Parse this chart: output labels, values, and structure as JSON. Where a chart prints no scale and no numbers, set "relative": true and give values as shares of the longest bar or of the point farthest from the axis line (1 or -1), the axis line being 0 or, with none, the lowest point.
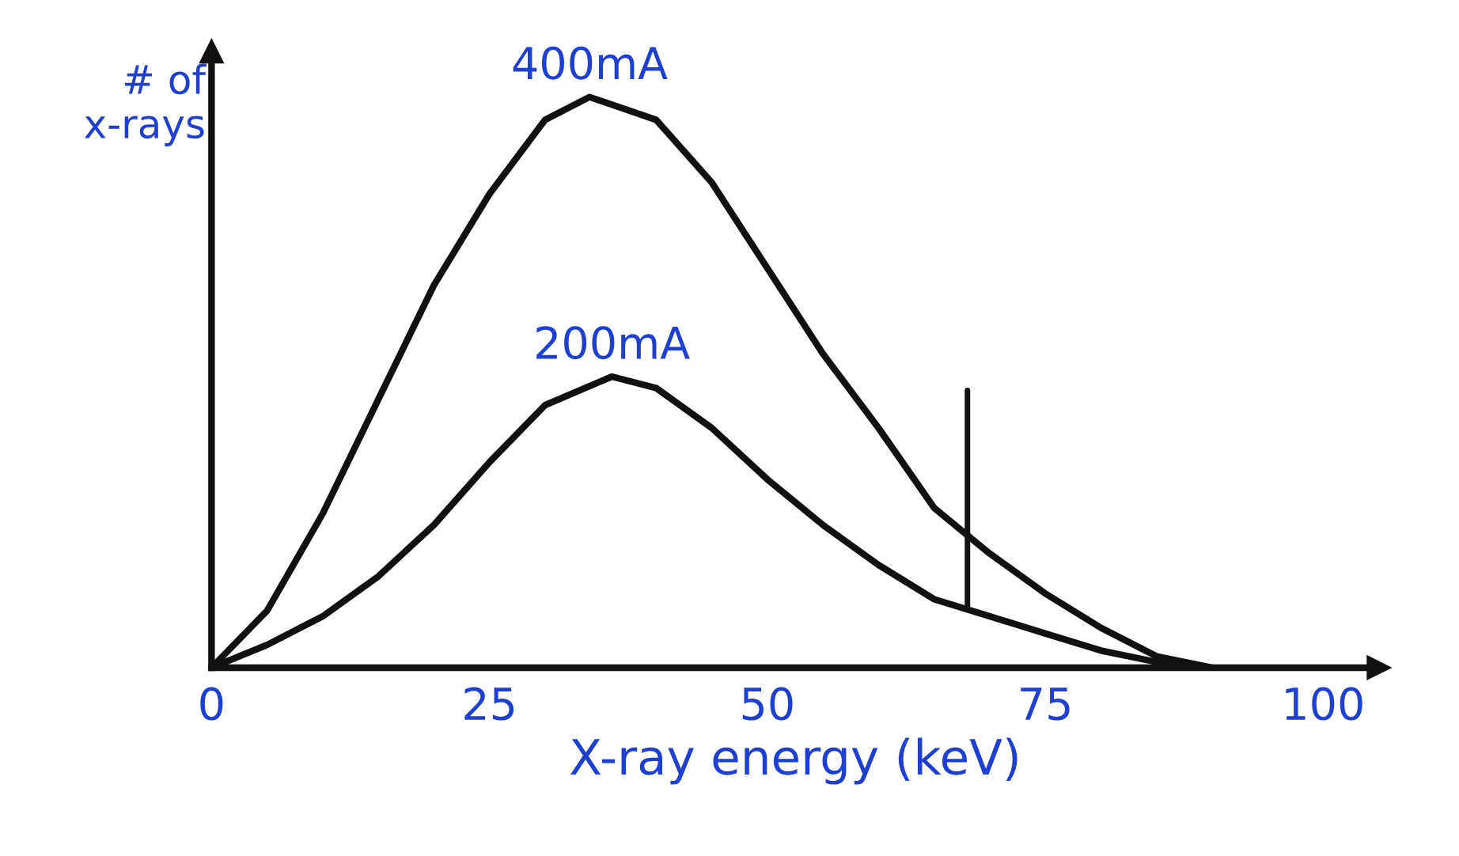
{
  "chart_data": {
    "type": "line",
    "relative": true,
    "xlabel": "X-ray energy (keV)",
    "ylabel": "# of\nx-rays",
    "xlim": [
      0,
      105
    ],
    "xticks": [
      0,
      25,
      50,
      75,
      100
    ],
    "grid": false,
    "legend": false,
    "marker": "none",
    "line_style": "solid",
    "series": [
      {
        "name": "400mA",
        "color": "#111111",
        "x": [
          0,
          5,
          10,
          15,
          20,
          25,
          30,
          34,
          40,
          45,
          50,
          55,
          60,
          65,
          70,
          75,
          80,
          85,
          90
        ],
        "values": [
          0,
          0.1,
          0.27,
          0.47,
          0.67,
          0.83,
          0.96,
          1.0,
          0.96,
          0.85,
          0.7,
          0.55,
          0.42,
          0.28,
          0.2,
          0.13,
          0.07,
          0.02,
          0
        ]
      },
      {
        "name": "200mA",
        "color": "#111111",
        "x": [
          0,
          5,
          10,
          15,
          20,
          25,
          30,
          36,
          40,
          45,
          50,
          55,
          60,
          65,
          70,
          75,
          80,
          85,
          90
        ],
        "values": [
          0,
          0.04,
          0.09,
          0.16,
          0.25,
          0.36,
          0.46,
          0.51,
          0.49,
          0.42,
          0.33,
          0.25,
          0.18,
          0.12,
          0.09,
          0.06,
          0.03,
          0.01,
          0
        ]
      }
    ],
    "ref_lines": [
      {
        "axis": "x",
        "value": 68,
        "color": "#111111"
      }
    ]
  }
}
